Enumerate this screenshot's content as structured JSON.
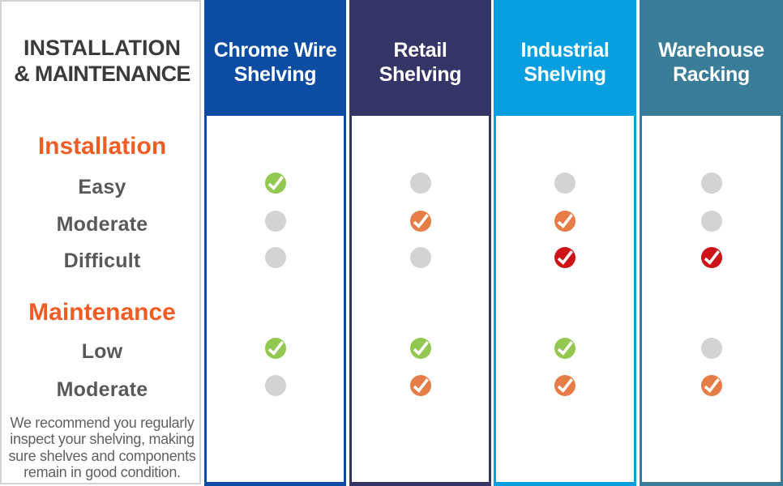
{
  "palette": {
    "background": "#ffffff",
    "panel_border": "#d3d3d3",
    "title_text": "#3b3b3b",
    "section_heading_text": "#f15c25",
    "row_label_text": "#58595b",
    "footnote_text": "#616161",
    "header_label_text": "#ffffff",
    "dot_gray": "#d3d3d3",
    "check_green": "#92c750",
    "check_orange": "#e67c46",
    "check_red": "#cd1317",
    "check_mark": "#ffffff"
  },
  "left_panel": {
    "title_lines": [
      "INSTALLATION",
      "& MAINTENANCE"
    ],
    "sections": [
      {
        "heading": "Installation",
        "rows": [
          "Easy",
          "Moderate",
          "Difficult"
        ]
      },
      {
        "heading": "Maintenance",
        "rows": [
          "Low",
          "Moderate"
        ]
      }
    ],
    "footnote_lines": [
      "We recommend you regularly",
      "inspect your shelving, making",
      "sure shelves and components",
      "remain in good condition."
    ]
  },
  "columns": [
    {
      "id": "chrome-wire-shelving",
      "label": "Chrome Wire Shelving",
      "label_lines": [
        "Chrome Wire",
        "Shelving"
      ],
      "color": "#0c4da3"
    },
    {
      "id": "retail-shelving",
      "label": "Retail Shelving",
      "label_lines": [
        "Retail",
        "Shelving"
      ],
      "color": "#353466"
    },
    {
      "id": "industrial-shelving",
      "label": "Industrial Shelving",
      "label_lines": [
        "Industrial",
        "Shelving"
      ],
      "color": "#089fe0"
    },
    {
      "id": "warehouse-racking",
      "label": "Warehouse Racking",
      "label_lines": [
        "Warehouse",
        "Racking"
      ],
      "color": "#3a7d99"
    }
  ],
  "chart_data": {
    "type": "table",
    "title": "INSTALLATION & MAINTENANCE",
    "columns": [
      "Chrome Wire Shelving",
      "Retail Shelving",
      "Industrial Shelving",
      "Warehouse Racking"
    ],
    "row_groups": [
      {
        "group": "Installation",
        "rows": [
          {
            "label": "Easy",
            "values": [
              "check-green",
              "dot-gray",
              "dot-gray",
              "dot-gray"
            ]
          },
          {
            "label": "Moderate",
            "values": [
              "dot-gray",
              "check-orange",
              "check-orange",
              "dot-gray"
            ]
          },
          {
            "label": "Difficult",
            "values": [
              "dot-gray",
              "dot-gray",
              "check-red",
              "check-red"
            ]
          }
        ]
      },
      {
        "group": "Maintenance",
        "rows": [
          {
            "label": "Low",
            "values": [
              "check-green",
              "check-green",
              "check-green",
              "dot-gray"
            ]
          },
          {
            "label": "Moderate",
            "values": [
              "dot-gray",
              "check-orange",
              "check-orange",
              "check-orange"
            ]
          }
        ]
      }
    ],
    "footnote": "We recommend you regularly inspect your shelving, making sure shelves and components remain in good condition."
  }
}
